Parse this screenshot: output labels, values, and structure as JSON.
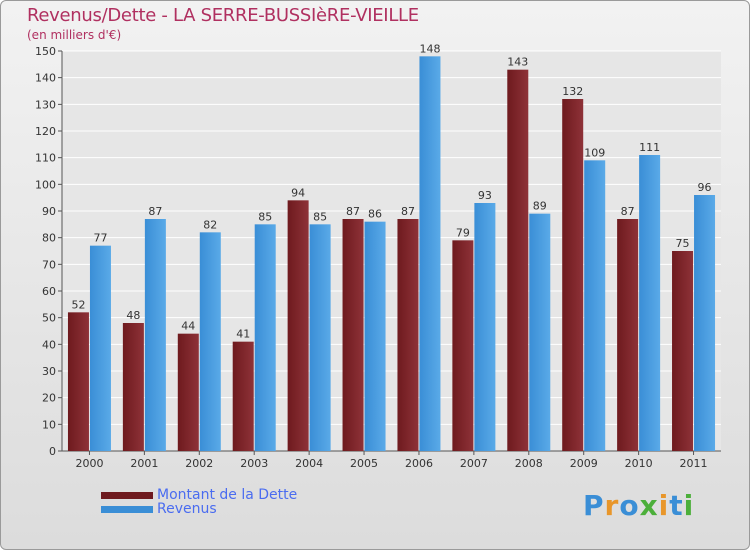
{
  "header": {
    "title": "Revenus/Dette - LA SERRE-BUSSIèRE-VIEILLE",
    "subtitle": "(en milliers d'€)"
  },
  "legend": {
    "dette_label": "Montant de la Dette",
    "revenus_label": "Revenus"
  },
  "logo": {
    "text": "Proxiti"
  },
  "colors": {
    "dette": "#6e1a1e",
    "dette_light": "#8e3238",
    "revenus": "#3a8ed6",
    "revenus_light": "#5aaae8",
    "title": "#b03060",
    "legend_text": "#4a6cf0"
  },
  "chart_data": {
    "type": "bar",
    "title": "Revenus/Dette - LA SERRE-BUSSIèRE-VIEILLE",
    "subtitle": "(en milliers d'€)",
    "categories": [
      "2000",
      "2001",
      "2002",
      "2003",
      "2004",
      "2005",
      "2006",
      "2007",
      "2008",
      "2009",
      "2010",
      "2011"
    ],
    "series": [
      {
        "name": "Montant de la Dette",
        "values": [
          52,
          48,
          44,
          41,
          94,
          87,
          87,
          79,
          143,
          132,
          87,
          75
        ]
      },
      {
        "name": "Revenus",
        "values": [
          77,
          87,
          82,
          85,
          85,
          86,
          148,
          93,
          89,
          109,
          111,
          96
        ]
      }
    ],
    "yticks": [
      0,
      10,
      20,
      30,
      40,
      50,
      60,
      70,
      80,
      90,
      100,
      110,
      120,
      130,
      140,
      150
    ],
    "ylim": [
      0,
      150
    ],
    "grid": true,
    "legend_position": "bottom-left"
  }
}
